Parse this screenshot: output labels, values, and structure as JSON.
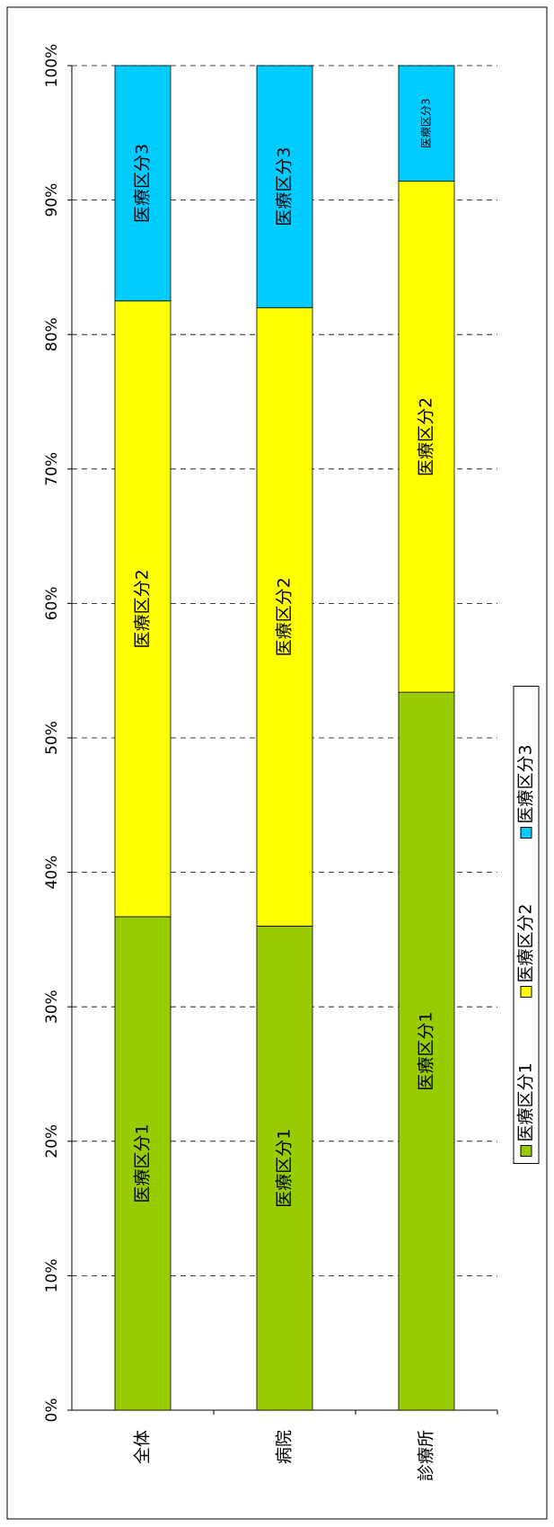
{
  "chart_data": {
    "type": "stacked_bar",
    "categories": [
      "全体",
      "病院",
      "診療所"
    ],
    "series": [
      {
        "name": "医療区分1",
        "color": "#99cc00",
        "values": [
          36.7,
          36.0,
          53.4
        ]
      },
      {
        "name": "医療区分2",
        "color": "#ffff00",
        "values": [
          45.8,
          46.0,
          38.0
        ]
      },
      {
        "name": "医療区分3",
        "color": "#00ccff",
        "values": [
          17.5,
          18.0,
          8.6
        ]
      }
    ],
    "ylim": [
      0,
      100
    ],
    "yticks": [
      {
        "value": 0,
        "label": "0%"
      },
      {
        "value": 10,
        "label": "10%"
      },
      {
        "value": 20,
        "label": "20%"
      },
      {
        "value": 30,
        "label": "30%"
      },
      {
        "value": 40,
        "label": "40%"
      },
      {
        "value": 50,
        "label": "50%"
      },
      {
        "value": 60,
        "label": "60%"
      },
      {
        "value": 70,
        "label": "70%"
      },
      {
        "value": 80,
        "label": "80%"
      },
      {
        "value": 90,
        "label": "90%"
      },
      {
        "value": 100,
        "label": "100%"
      }
    ],
    "grid": true,
    "legend": "bottom"
  }
}
